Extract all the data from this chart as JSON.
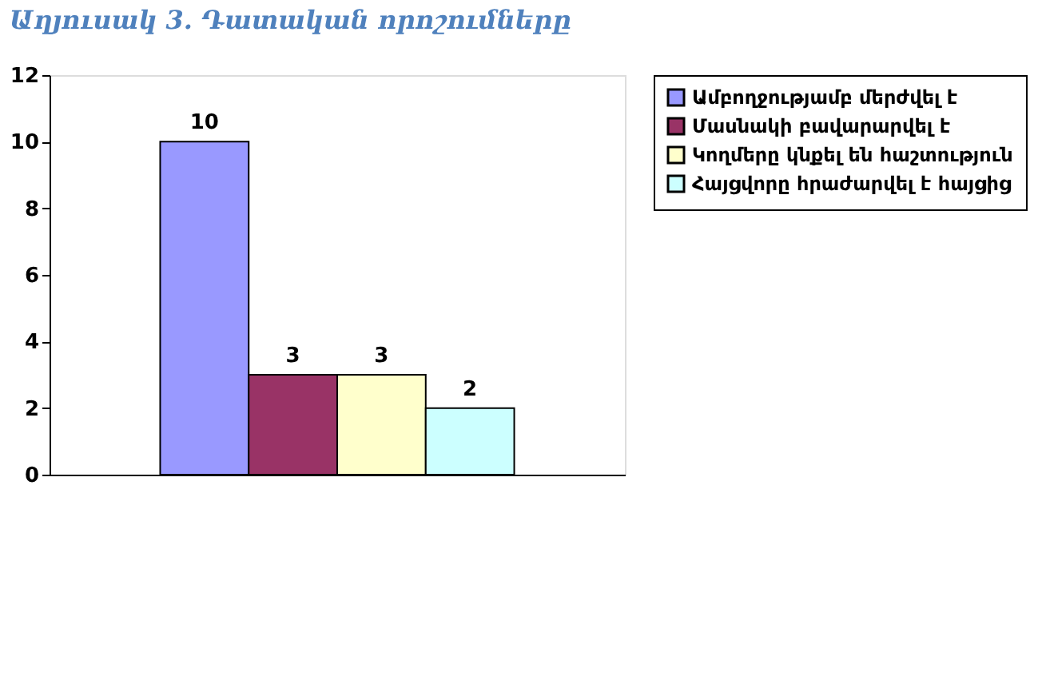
{
  "chart_data": {
    "type": "bar",
    "title": "Աղյուսակ 3. Դատական որոշումները",
    "categories": [
      null
    ],
    "series": [
      {
        "name": "Ամբողջությամբ մերժվել է",
        "color": "#9999ff",
        "values": [
          10
        ]
      },
      {
        "name": "Մասնակի բավարարվել է",
        "color": "#993366",
        "values": [
          3
        ]
      },
      {
        "name": "Կողմերը կնքել են հաշտություն",
        "color": "#ffffcc",
        "values": [
          3
        ]
      },
      {
        "name": "Հայցվորը հրաժարվել է հայցից",
        "color": "#ccffff",
        "values": [
          2
        ]
      }
    ],
    "ylim": [
      0,
      12
    ],
    "yticks": [
      0,
      2,
      4,
      6,
      8,
      10,
      12
    ],
    "data_labels": true,
    "grid": false,
    "legend": "right"
  }
}
